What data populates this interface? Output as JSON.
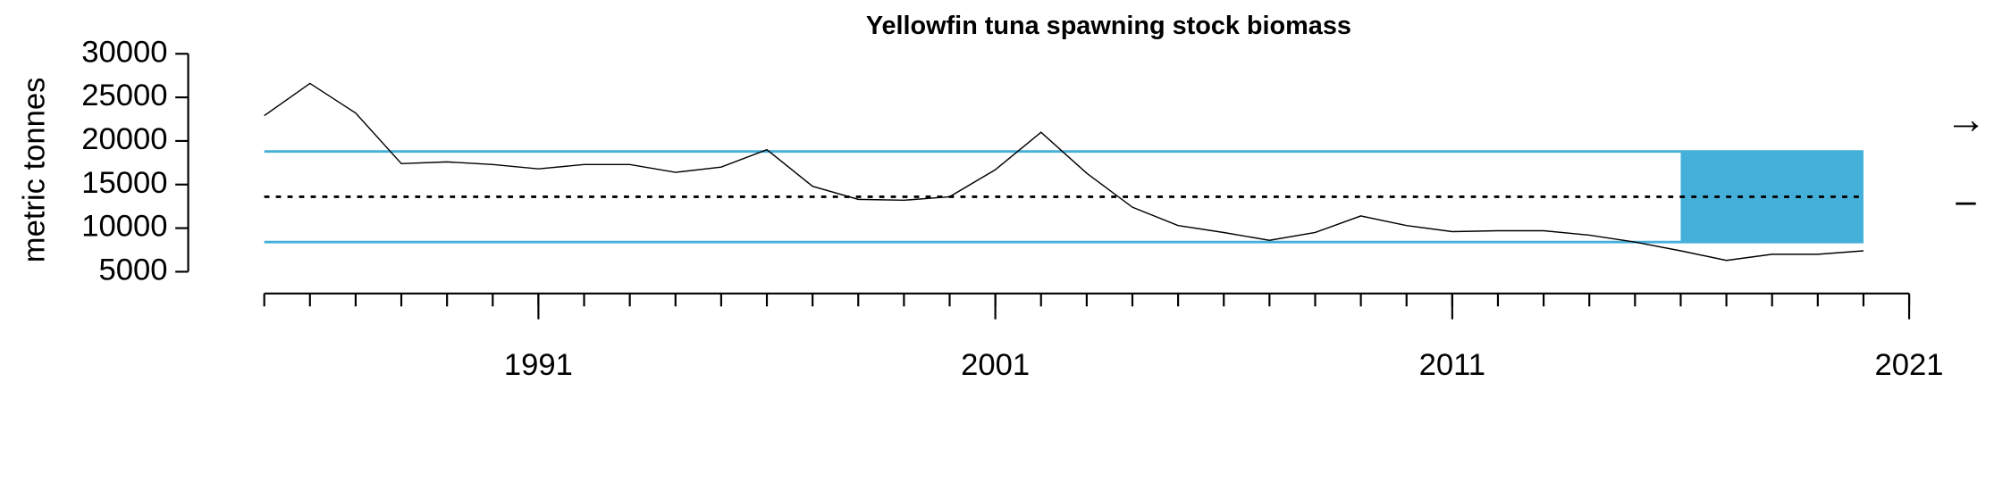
{
  "chart_data": {
    "type": "line",
    "title": "Yellowfin tuna spawning stock biomass",
    "y_label": "metric tonnes",
    "x": [
      1985,
      1986,
      1987,
      1988,
      1989,
      1990,
      1991,
      1992,
      1993,
      1994,
      1995,
      1996,
      1997,
      1998,
      1999,
      2000,
      2001,
      2002,
      2003,
      2004,
      2005,
      2006,
      2007,
      2008,
      2009,
      2010,
      2011,
      2012,
      2013,
      2014,
      2015,
      2016,
      2017,
      2018,
      2019,
      2020
    ],
    "values": [
      22900,
      26600,
      23200,
      17400,
      17600,
      17300,
      16800,
      17300,
      17300,
      16400,
      17000,
      19000,
      14800,
      13300,
      13200,
      13600,
      16700,
      21000,
      16300,
      12400,
      10300,
      9500,
      8600,
      9500,
      11400,
      10300,
      9600,
      9700,
      9700,
      9200,
      8400,
      7400,
      6300,
      7000,
      7000,
      7400
    ],
    "color": "#000000",
    "xlim": [
      1985,
      2021
    ],
    "xticks": [
      1991,
      2001,
      2011,
      2021
    ],
    "x_minor_ticks": [
      1985,
      1986,
      1987,
      1988,
      1989,
      1990,
      1991,
      1992,
      1993,
      1994,
      1995,
      1996,
      1997,
      1998,
      1999,
      2000,
      2001,
      2002,
      2003,
      2004,
      2005,
      2006,
      2007,
      2008,
      2009,
      2010,
      2011,
      2012,
      2013,
      2014,
      2015,
      2016,
      2017,
      2018,
      2019,
      2020,
      2021
    ],
    "ylim": [
      2500,
      31000
    ],
    "yticks": [
      5000,
      10000,
      15000,
      20000,
      25000,
      30000
    ],
    "upper_line": 18800,
    "mean_line": 13600,
    "lower_line": 8400,
    "band_color": "#44b0da",
    "shade": {
      "x": [
        2016,
        2020
      ],
      "y": [
        8400,
        18800
      ]
    },
    "annotations": [
      "→",
      "–"
    ]
  }
}
